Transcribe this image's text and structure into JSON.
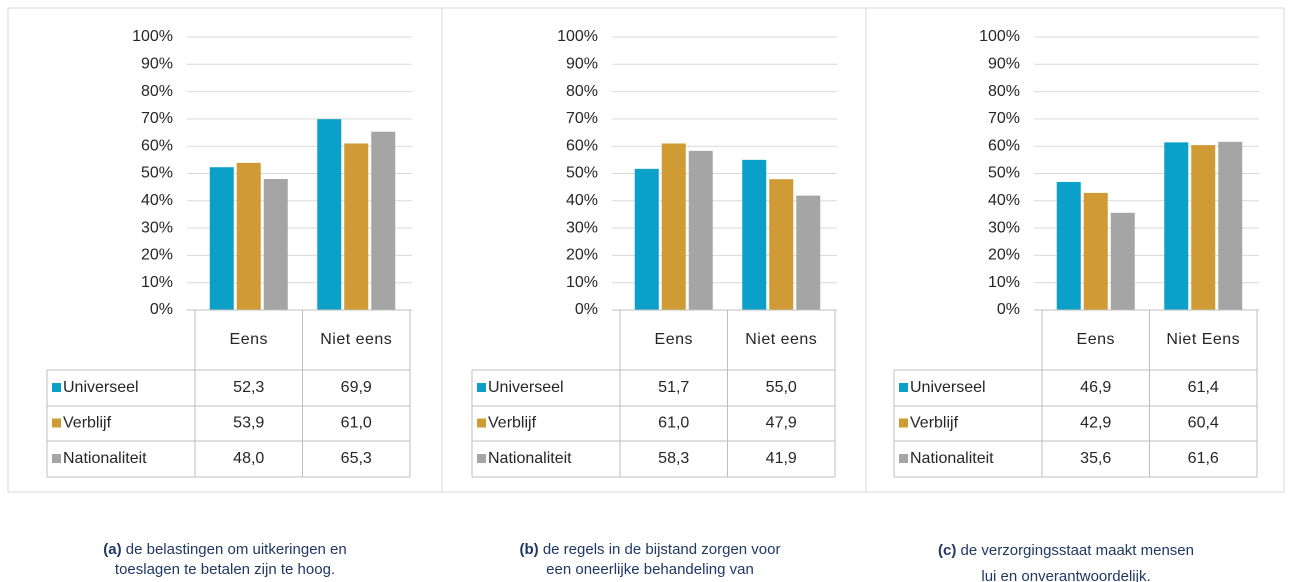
{
  "chart_data": [
    {
      "type": "bar",
      "caption_label": "(a)",
      "caption": "de belastingen om uitkeringen en toeslagen te betalen zijn te hoog.",
      "categories": [
        "Eens",
        "Niet eens"
      ],
      "series": [
        {
          "name": "Universeel",
          "color": "#0aa0c8",
          "values": [
            52.3,
            69.9
          ],
          "value_labels": [
            "52,3",
            "69,9"
          ]
        },
        {
          "name": "Verblijf",
          "color": "#d09a35",
          "values": [
            53.9,
            61.0
          ],
          "value_labels": [
            "53,9",
            "61,0"
          ]
        },
        {
          "name": "Nationaliteit",
          "color": "#a5a5a5",
          "values": [
            48.0,
            65.3
          ],
          "value_labels": [
            "48,0",
            "65,3"
          ]
        }
      ],
      "ylim": [
        0,
        100
      ],
      "yticks": [
        {
          "value": 0,
          "label": "0%"
        },
        {
          "value": 10,
          "label": "10%"
        },
        {
          "value": 20,
          "label": "20%"
        },
        {
          "value": 30,
          "label": "30%"
        },
        {
          "value": 40,
          "label": "40%"
        },
        {
          "value": 50,
          "label": "50%"
        },
        {
          "value": 60,
          "label": "60%"
        },
        {
          "value": 70,
          "label": "70%"
        },
        {
          "value": 80,
          "label": "80%"
        },
        {
          "value": 90,
          "label": "90%"
        },
        {
          "value": 100,
          "label": "100%"
        }
      ],
      "grid": true
    },
    {
      "type": "bar",
      "caption_label": "(b)",
      "caption": "de regels in de bijstand zorgen voor een oneerlijke behandeling van uitkeringsgerechtigden.",
      "categories": [
        "Eens",
        "Niet eens"
      ],
      "series": [
        {
          "name": "Universeel",
          "color": "#0aa0c8",
          "values": [
            51.7,
            55.0
          ],
          "value_labels": [
            "51,7",
            "55,0"
          ]
        },
        {
          "name": "Verblijf",
          "color": "#d09a35",
          "values": [
            61.0,
            47.9
          ],
          "value_labels": [
            "61,0",
            "47,9"
          ]
        },
        {
          "name": "Nationaliteit",
          "color": "#a5a5a5",
          "values": [
            58.3,
            41.9
          ],
          "value_labels": [
            "58,3",
            "41,9"
          ]
        }
      ],
      "ylim": [
        0,
        100
      ],
      "yticks": [
        {
          "value": 0,
          "label": "0%"
        },
        {
          "value": 10,
          "label": "10%"
        },
        {
          "value": 20,
          "label": "20%"
        },
        {
          "value": 30,
          "label": "30%"
        },
        {
          "value": 40,
          "label": "40%"
        },
        {
          "value": 50,
          "label": "50%"
        },
        {
          "value": 60,
          "label": "60%"
        },
        {
          "value": 70,
          "label": "70%"
        },
        {
          "value": 80,
          "label": "80%"
        },
        {
          "value": 90,
          "label": "90%"
        },
        {
          "value": 100,
          "label": "100%"
        }
      ],
      "grid": true
    },
    {
      "type": "bar",
      "caption_label": "(c)",
      "caption": "de verzorgingsstaat maakt mensen lui en onverantwoordelijk.",
      "categories": [
        "Eens",
        "Niet Eens"
      ],
      "series": [
        {
          "name": "Universeel",
          "color": "#0aa0c8",
          "values": [
            46.9,
            61.4
          ],
          "value_labels": [
            "46,9",
            "61,4"
          ]
        },
        {
          "name": "Verblijf",
          "color": "#d09a35",
          "values": [
            42.9,
            60.4
          ],
          "value_labels": [
            "42,9",
            "60,4"
          ]
        },
        {
          "name": "Nationaliteit",
          "color": "#a5a5a5",
          "values": [
            35.6,
            61.6
          ],
          "value_labels": [
            "35,6",
            "61,6"
          ]
        }
      ],
      "ylim": [
        0,
        100
      ],
      "yticks": [
        {
          "value": 0,
          "label": "0%"
        },
        {
          "value": 10,
          "label": "10%"
        },
        {
          "value": 20,
          "label": "20%"
        },
        {
          "value": 30,
          "label": "30%"
        },
        {
          "value": 40,
          "label": "40%"
        },
        {
          "value": 50,
          "label": "50%"
        },
        {
          "value": 60,
          "label": "60%"
        },
        {
          "value": 70,
          "label": "70%"
        },
        {
          "value": 80,
          "label": "80%"
        },
        {
          "value": 90,
          "label": "90%"
        },
        {
          "value": 100,
          "label": "100%"
        }
      ],
      "grid": true
    }
  ]
}
